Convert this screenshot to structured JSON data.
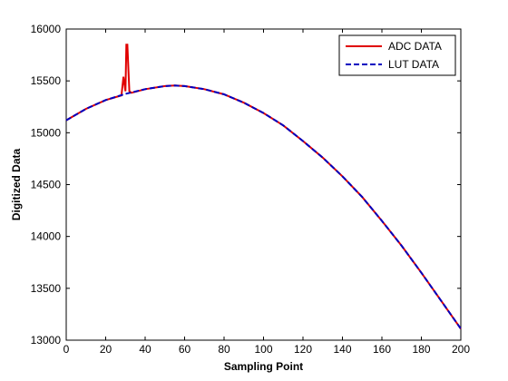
{
  "chart_data": {
    "type": "line",
    "title": "",
    "xlabel": "Sampling Point",
    "ylabel": "Digitized Data",
    "xlim": [
      0,
      200
    ],
    "ylim": [
      13000,
      16000
    ],
    "xticks": [
      0,
      20,
      40,
      60,
      80,
      100,
      120,
      140,
      160,
      180,
      200
    ],
    "yticks": [
      13000,
      13500,
      14000,
      14500,
      15000,
      15500,
      16000
    ],
    "grid": false,
    "legend_position": "top-right",
    "series": [
      {
        "name": "ADC DATA",
        "color": "#e00000",
        "style": "solid",
        "x": [
          0,
          10,
          20,
          28,
          29,
          30,
          30.5,
          31,
          31.5,
          32,
          33,
          40,
          50,
          55,
          60,
          70,
          80,
          90,
          100,
          110,
          120,
          130,
          140,
          150,
          160,
          170,
          180,
          190,
          200
        ],
        "y": [
          15120,
          15230,
          15315,
          15360,
          15540,
          15400,
          15850,
          15850,
          15620,
          15400,
          15385,
          15420,
          15450,
          15455,
          15450,
          15420,
          15370,
          15290,
          15190,
          15070,
          14920,
          14760,
          14580,
          14380,
          14150,
          13910,
          13650,
          13380,
          13110
        ]
      },
      {
        "name": "LUT DATA",
        "color": "#0000c0",
        "style": "dashed",
        "x": [
          0,
          10,
          20,
          30,
          40,
          50,
          55,
          60,
          70,
          80,
          90,
          100,
          110,
          120,
          130,
          140,
          150,
          160,
          170,
          180,
          190,
          200
        ],
        "y": [
          15120,
          15230,
          15315,
          15375,
          15420,
          15450,
          15455,
          15450,
          15420,
          15370,
          15290,
          15190,
          15070,
          14920,
          14760,
          14580,
          14380,
          14150,
          13910,
          13650,
          13380,
          13110
        ]
      }
    ]
  }
}
